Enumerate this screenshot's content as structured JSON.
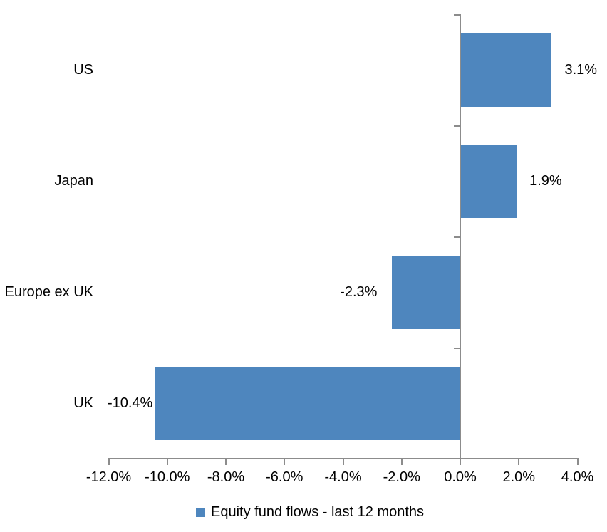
{
  "chart_data": {
    "type": "bar",
    "orientation": "horizontal",
    "categories": [
      "US",
      "Japan",
      "Europe ex UK",
      "UK"
    ],
    "values": [
      3.1,
      1.9,
      -2.3,
      -10.4
    ],
    "point_labels": [
      "3.1%",
      "1.9%",
      "-2.3%",
      "-10.4%"
    ],
    "series_name": "Equity fund flows - last 12 months",
    "xlim": [
      -12,
      4
    ],
    "x_tick_values": [
      -12,
      -10,
      -8,
      -6,
      -4,
      -2,
      0,
      2,
      4
    ],
    "x_tick_labels": [
      "-12.0%",
      "-10.0%",
      "-8.0%",
      "-6.0%",
      "-4.0%",
      "-2.0%",
      "0.0%",
      "2.0%",
      "4.0%"
    ],
    "grid": false,
    "legend_position": "bottom-center",
    "bar_color": "#4e86be",
    "axis_color": "#8c8c8c",
    "text_color": "#000000"
  }
}
